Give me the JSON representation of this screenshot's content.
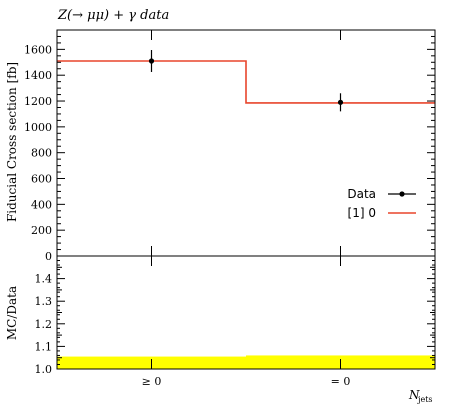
{
  "chart_data": {
    "type": "histogram",
    "title": "Z(→ μμ) + γ data",
    "ylabel": "Fiducial Cross section [fb]",
    "ratio_ylabel": "MC/Data",
    "xlabel": "N",
    "xlabel_sub": "jets",
    "categories": [
      "≥ 0",
      "= 0"
    ],
    "ylim": [
      0,
      1750
    ],
    "yticks": [
      0,
      200,
      400,
      600,
      800,
      1000,
      1200,
      1400,
      1600
    ],
    "ratio_ylim": [
      1.0,
      1.5
    ],
    "ratio_yticks": [
      1.0,
      1.1,
      1.2,
      1.3,
      1.4
    ],
    "series": [
      {
        "name": "Data",
        "type": "points",
        "values": [
          1510,
          1190
        ],
        "errors": [
          85,
          70
        ],
        "color": "#000000"
      },
      {
        "name": "[1] 0",
        "type": "step",
        "values": [
          1510,
          1185
        ],
        "color": "#e8452c"
      }
    ],
    "ratio_band": {
      "low": [
        1.0,
        1.0
      ],
      "high": [
        1.055,
        1.06
      ],
      "color": "#ffff00"
    },
    "legend": [
      {
        "label": "Data",
        "marker": "point"
      },
      {
        "label": "[1] 0",
        "marker": "line"
      }
    ],
    "legend_position": "right"
  }
}
